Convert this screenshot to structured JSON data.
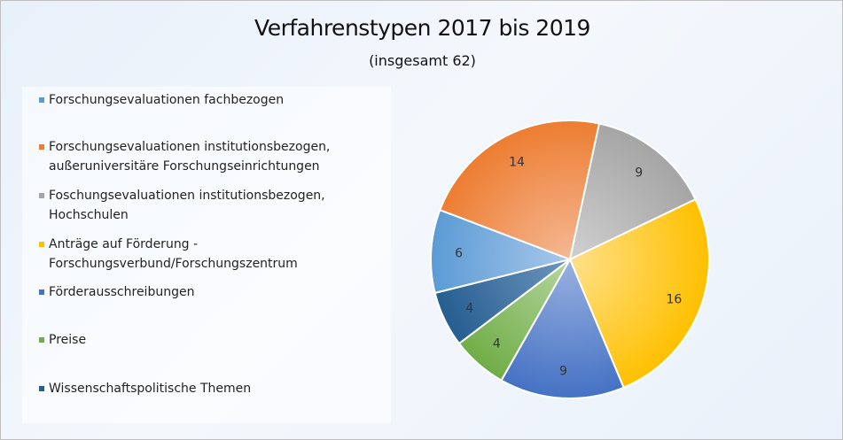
{
  "chart_data": {
    "type": "pie",
    "title": "Verfahrenstypen 2017 bis 2019",
    "subtitle": "(insgesamt 62)",
    "legend_position": "left",
    "categories": [
      "Forschungsevaluationen fachbezogen",
      "Forschungsevaluationen institutionsbezogen, außeruniversitäre Forschungseinrichtungen",
      "Foschungsevaluationen institutionsbezogen, Hochschulen",
      "Anträge auf Förderung - Forschungsverbund/Forschungszentrum",
      "Förderausschreibungen",
      "Preise",
      "Wissenschaftspolitische Themen"
    ],
    "legend_lines": [
      [
        "Forschungsevaluationen fachbezogen"
      ],
      [
        "Forschungsevaluationen institutionsbezogen,",
        "außeruniversitäre Forschungseinrichtungen"
      ],
      [
        "Foschungsevaluationen institutionsbezogen,",
        "Hochschulen"
      ],
      [
        "Anträge auf Förderung -",
        "Forschungsverbund/Forschungszentrum"
      ],
      [
        "Förderausschreibungen"
      ],
      [
        "Preise"
      ],
      [
        "Wissenschaftspolitische Themen"
      ]
    ],
    "values": [
      6,
      14,
      9,
      16,
      9,
      4,
      4
    ],
    "colors": [
      "#5b9bd5",
      "#ed7d31",
      "#a5a5a5",
      "#ffc000",
      "#4472c4",
      "#70ad47",
      "#255e91"
    ],
    "colors_light": [
      "#a9c8ea",
      "#f5b895",
      "#d0d0d0",
      "#ffe08a",
      "#9ab1e0",
      "#b5d69e",
      "#6f95bd"
    ]
  }
}
